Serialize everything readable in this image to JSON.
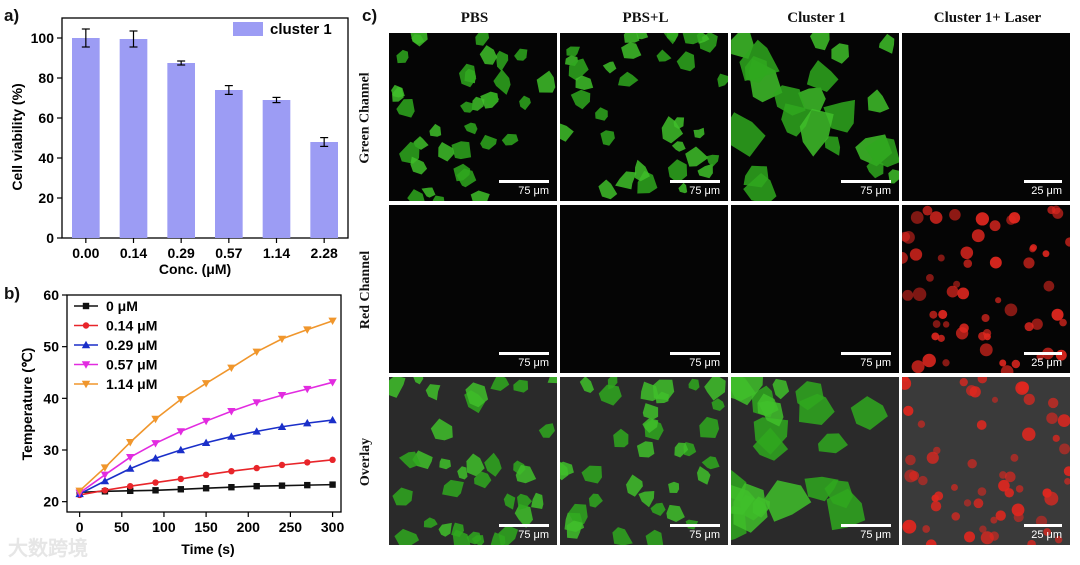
{
  "panel_labels": {
    "a": "a)",
    "b": "b)",
    "c": "c)"
  },
  "chart_data": [
    {
      "type": "bar",
      "categories": [
        "0.00",
        "0.14",
        "0.29",
        "0.57",
        "1.14",
        "2.28"
      ],
      "values": [
        100,
        99.5,
        87.5,
        74,
        69,
        48
      ],
      "errors": [
        4.5,
        4,
        1,
        2.2,
        1.3,
        2.2
      ],
      "series": [
        {
          "name": "cluster 1",
          "values": [
            100,
            99.5,
            87.5,
            74,
            69,
            48
          ]
        }
      ],
      "xlabel": "Conc. (μM)",
      "ylabel": "Cell viability (%)",
      "ylim": [
        0,
        110
      ],
      "yticks": [
        0,
        20,
        40,
        60,
        80,
        100
      ],
      "legend": "top-right",
      "color": "#9c9cf4"
    },
    {
      "type": "line",
      "x": [
        0,
        30,
        60,
        90,
        120,
        150,
        180,
        210,
        240,
        270,
        300
      ],
      "xlabel": "Time (s)",
      "ylabel": "Temperature (℃)",
      "xlim": [
        -15,
        310
      ],
      "ylim": [
        18,
        60
      ],
      "xticks": [
        0,
        50,
        100,
        150,
        200,
        250,
        300
      ],
      "yticks": [
        20,
        30,
        40,
        50,
        60
      ],
      "legend": "top-left",
      "series": [
        {
          "name": "0 μM",
          "color": "#111111",
          "marker": "square",
          "values": [
            21.8,
            22.0,
            22.1,
            22.2,
            22.4,
            22.6,
            22.8,
            23.0,
            23.1,
            23.2,
            23.3
          ]
        },
        {
          "name": "0.14 μM",
          "color": "#e8252a",
          "marker": "circle",
          "values": [
            21.3,
            22.2,
            23.0,
            23.7,
            24.4,
            25.2,
            25.9,
            26.5,
            27.1,
            27.6,
            28.1
          ]
        },
        {
          "name": "0.29 μM",
          "color": "#1a2fc9",
          "marker": "triangle-up",
          "values": [
            21.5,
            24.0,
            26.4,
            28.4,
            30.0,
            31.4,
            32.6,
            33.6,
            34.5,
            35.2,
            35.8
          ]
        },
        {
          "name": "0.57 μM",
          "color": "#e22be0",
          "marker": "triangle-down",
          "values": [
            21.7,
            25.2,
            28.6,
            31.3,
            33.6,
            35.6,
            37.5,
            39.2,
            40.6,
            41.8,
            43.1
          ]
        },
        {
          "name": "1.14 μM",
          "color": "#f0962c",
          "marker": "triangle-down",
          "values": [
            22.1,
            26.6,
            31.5,
            36.0,
            39.8,
            42.9,
            45.9,
            49.0,
            51.5,
            53.3,
            55.0
          ]
        }
      ]
    }
  ],
  "microscopy": {
    "columns": [
      "PBS",
      "PBS+L",
      "Cluster 1",
      "Cluster 1+ Laser"
    ],
    "rows": [
      "Green Channel",
      "Red Channel",
      "Overlay"
    ],
    "scale_bars": [
      [
        "75 μm",
        "75 μm",
        "75 μm",
        "25 μm"
      ],
      [
        "75 μm",
        "75 μm",
        "75 μm",
        "25 μm"
      ],
      [
        "75 μm",
        "75 μm",
        "75 μm",
        "25 μm"
      ]
    ]
  },
  "watermark": "大数跨境"
}
